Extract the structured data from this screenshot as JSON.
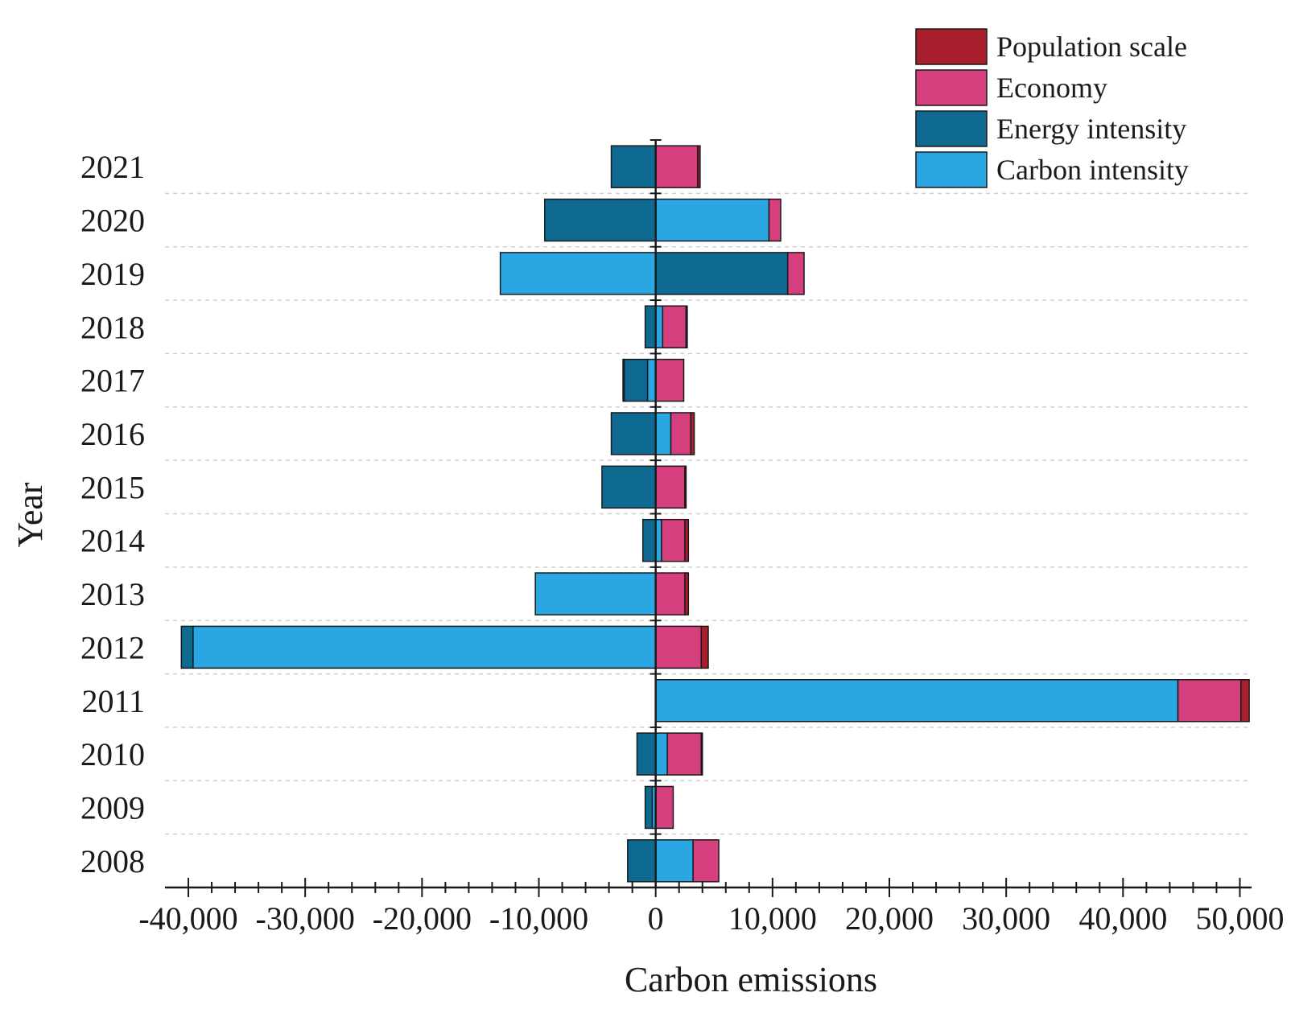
{
  "chart_data": {
    "type": "bar",
    "orientation": "horizontal",
    "stacked": "diverging",
    "xlabel": "Carbon emissions",
    "ylabel": "Year",
    "xlim": [
      -42000,
      51000
    ],
    "xticks": [
      -40000,
      -30000,
      -20000,
      -10000,
      0,
      10000,
      20000,
      30000,
      40000,
      50000
    ],
    "xtick_labels": [
      "-40,000",
      "-30,000",
      "-20,000",
      "-10,000",
      "0",
      "10,000",
      "20,000",
      "30,000",
      "40,000",
      "50,000"
    ],
    "categories": [
      "2021",
      "2020",
      "2019",
      "2018",
      "2017",
      "2016",
      "2015",
      "2014",
      "2013",
      "2012",
      "2011",
      "2010",
      "2009",
      "2008"
    ],
    "grid": "horizontal dashed",
    "legend_position": "top-right",
    "series": [
      {
        "name": "Population scale",
        "color": "#a81f2e",
        "values": [
          200,
          0,
          0,
          100,
          -100,
          300,
          100,
          300,
          300,
          600,
          700,
          100,
          0,
          0
        ]
      },
      {
        "name": "Economy",
        "color": "#d63f7e",
        "values": [
          3600,
          1000,
          1400,
          2000,
          2400,
          1700,
          2500,
          2000,
          2500,
          3900,
          5400,
          2900,
          1500,
          2200
        ]
      },
      {
        "name": "Energy intensity",
        "color": "#0f6a92",
        "values": [
          -3800,
          -9500,
          11300,
          -900,
          -2000,
          -3800,
          -4600,
          -1100,
          0,
          -1000,
          0,
          -1600,
          -600,
          -2400
        ]
      },
      {
        "name": "Carbon intensity",
        "color": "#2aa7e2",
        "values": [
          0,
          9700,
          -13300,
          600,
          -700,
          1300,
          0,
          500,
          -10300,
          -39600,
          44700,
          1000,
          -300,
          3200
        ]
      }
    ]
  }
}
